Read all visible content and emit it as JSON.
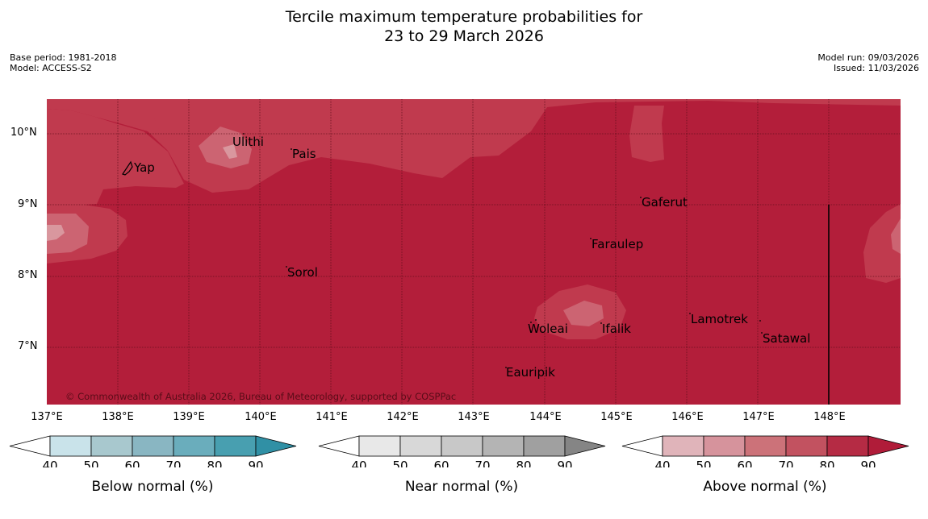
{
  "header": {
    "title_line1": "Tercile maximum temperature probabilities for",
    "title_line2": "23 to 29 March 2026",
    "base_period": "Base period: 1981-2018",
    "model": "Model: ACCESS-S2",
    "model_run": "Model run: 09/03/2026",
    "issued": "Issued: 11/03/2026"
  },
  "map": {
    "copyright": "© Commonwealth of Australia 2026, Bureau of Meteorology, supported by COSPPac",
    "lat_labels": [
      "10°N",
      "9°N",
      "8°N",
      "7°N"
    ],
    "lon_labels": [
      "137°E",
      "138°E",
      "139°E",
      "140°E",
      "141°E",
      "142°E",
      "143°E",
      "144°E",
      "145°E",
      "146°E",
      "147°E",
      "148°E"
    ],
    "places": [
      "Yap",
      "Ulithi",
      "Pais",
      "Gaferut",
      "Faraulep",
      "Sorol",
      "Woleai",
      "Ifalik",
      "Lamotrek",
      "Satawal",
      "Eauripik"
    ],
    "colors": {
      "base": "#b31e3a",
      "level70": "#c03a4e",
      "level60": "#cc6472",
      "level50": "#d9979e"
    }
  },
  "colorbars": [
    {
      "title": "Below normal (%)",
      "ticks": [
        "40",
        "50",
        "60",
        "70",
        "80",
        "90"
      ],
      "colors": [
        "#ffffff",
        "#c9e3ea",
        "#a8c8ce",
        "#89b6c2",
        "#6aadbc",
        "#489fb0",
        "#3090a5"
      ]
    },
    {
      "title": "Near normal (%)",
      "ticks": [
        "40",
        "50",
        "60",
        "70",
        "80",
        "90"
      ],
      "colors": [
        "#ffffff",
        "#e8e8e8",
        "#d8d8d8",
        "#c8c8c8",
        "#b4b4b4",
        "#a0a0a0",
        "#858585"
      ]
    },
    {
      "title": "Above normal (%)",
      "ticks": [
        "40",
        "50",
        "60",
        "70",
        "80",
        "90"
      ],
      "colors": [
        "#ffffff",
        "#e0b4ba",
        "#d6939c",
        "#cc7279",
        "#c25260",
        "#b52b44",
        "#b01c39"
      ]
    }
  ]
}
